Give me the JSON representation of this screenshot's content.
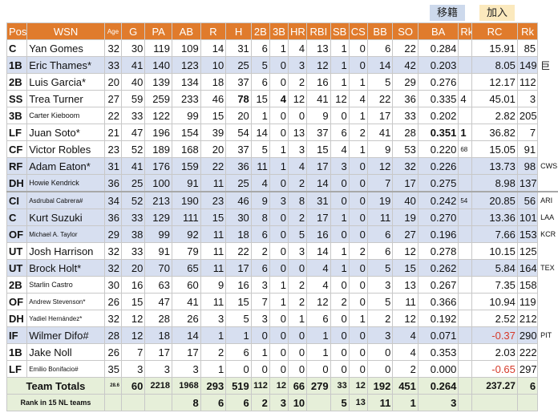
{
  "buttons": {
    "transfer": "移籍",
    "join": "加入"
  },
  "headers": [
    "Pos",
    "WSN",
    "Age",
    "G",
    "PA",
    "AB",
    "R",
    "H",
    "2B",
    "3B",
    "HR",
    "RBI",
    "SB",
    "CS",
    "BB",
    "SO",
    "BA",
    "Rk",
    "RC",
    "Rk"
  ],
  "players": [
    {
      "pos": "C",
      "name": "Yan Gomes",
      "age": "32",
      "g": "30",
      "pa": "119",
      "ab": "109",
      "r": "14",
      "h": "31",
      "d": "6",
      "t": "1",
      "hr": "4",
      "rbi": "13",
      "sb": "1",
      "cs": "0",
      "bb": "6",
      "so": "22",
      "ba": "0.284",
      "rk1": "",
      "rc": "15.91",
      "rk2": "85",
      "team": "",
      "row": "white"
    },
    {
      "pos": "1B",
      "name": "Eric Thames*",
      "age": "33",
      "g": "41",
      "pa": "140",
      "ab": "123",
      "r": "10",
      "h": "25",
      "d": "5",
      "t": "0",
      "hr": "3",
      "rbi": "12",
      "sb": "1",
      "cs": "0",
      "bb": "14",
      "so": "42",
      "ba": "0.203",
      "rk1": "",
      "rc": "8.05",
      "rk2": "149",
      "team": "巨",
      "row": "blue"
    },
    {
      "pos": "2B",
      "name": "Luis Garcia*",
      "age": "20",
      "g": "40",
      "pa": "139",
      "ab": "134",
      "r": "18",
      "h": "37",
      "d": "6",
      "t": "0",
      "hr": "2",
      "rbi": "16",
      "sb": "1",
      "cs": "1",
      "bb": "5",
      "so": "29",
      "ba": "0.276",
      "rk1": "",
      "rc": "12.17",
      "rk2": "112",
      "team": "",
      "row": "white"
    },
    {
      "pos": "SS",
      "name": "Trea Turner",
      "age": "27",
      "g": "59",
      "pa": "259",
      "ab": "233",
      "r": "46",
      "h": "78",
      "d": "15",
      "t": "4",
      "hr": "12",
      "rbi": "41",
      "sb": "12",
      "cs": "4",
      "bb": "22",
      "so": "36",
      "ba": "0.335",
      "rk1": "4",
      "rc": "45.01",
      "rk2": "3",
      "team": "",
      "row": "white"
    },
    {
      "pos": "3B",
      "name": "Carter Kieboom",
      "age": "22",
      "g": "33",
      "pa": "122",
      "ab": "99",
      "r": "15",
      "h": "20",
      "d": "1",
      "t": "0",
      "hr": "0",
      "rbi": "9",
      "sb": "0",
      "cs": "1",
      "bb": "17",
      "so": "33",
      "ba": "0.202",
      "rk1": "",
      "rc": "2.82",
      "rk2": "205",
      "team": "",
      "row": "white"
    },
    {
      "pos": "LF",
      "name": "Juan Soto*",
      "age": "21",
      "g": "47",
      "pa": "196",
      "ab": "154",
      "r": "39",
      "h": "54",
      "d": "14",
      "t": "0",
      "hr": "13",
      "rbi": "37",
      "sb": "6",
      "cs": "2",
      "bb": "41",
      "so": "28",
      "ba": "0.351",
      "rk1": "1",
      "rc": "36.82",
      "rk2": "7",
      "team": "",
      "row": "white"
    },
    {
      "pos": "CF",
      "name": "Victor Robles",
      "age": "23",
      "g": "52",
      "pa": "189",
      "ab": "168",
      "r": "20",
      "h": "37",
      "d": "5",
      "t": "1",
      "hr": "3",
      "rbi": "15",
      "sb": "4",
      "cs": "1",
      "bb": "9",
      "so": "53",
      "ba": "0.220",
      "rk1": "68",
      "rc": "15.05",
      "rk2": "91",
      "team": "",
      "row": "white"
    },
    {
      "pos": "RF",
      "name": "Adam Eaton*",
      "age": "31",
      "g": "41",
      "pa": "176",
      "ab": "159",
      "r": "22",
      "h": "36",
      "d": "11",
      "t": "1",
      "hr": "4",
      "rbi": "17",
      "sb": "3",
      "cs": "0",
      "bb": "12",
      "so": "32",
      "ba": "0.226",
      "rk1": "",
      "rc": "13.73",
      "rk2": "98",
      "team": "CWS",
      "row": "blue"
    },
    {
      "pos": "DH",
      "name": "Howie Kendrick",
      "age": "36",
      "g": "25",
      "pa": "100",
      "ab": "91",
      "r": "11",
      "h": "25",
      "d": "4",
      "t": "0",
      "hr": "2",
      "rbi": "14",
      "sb": "0",
      "cs": "0",
      "bb": "7",
      "so": "17",
      "ba": "0.275",
      "rk1": "",
      "rc": "8.98",
      "rk2": "137",
      "team": "",
      "row": "blue"
    },
    {
      "pos": "CI",
      "name": "Asdrubal Cabrera#",
      "age": "34",
      "g": "52",
      "pa": "213",
      "ab": "190",
      "r": "23",
      "h": "46",
      "d": "9",
      "t": "3",
      "hr": "8",
      "rbi": "31",
      "sb": "0",
      "cs": "0",
      "bb": "19",
      "so": "40",
      "ba": "0.242",
      "rk1": "54",
      "rc": "20.85",
      "rk2": "56",
      "team": "ARI",
      "row": "blue"
    },
    {
      "pos": "C",
      "name": "Kurt Suzuki",
      "age": "36",
      "g": "33",
      "pa": "129",
      "ab": "111",
      "r": "15",
      "h": "30",
      "d": "8",
      "t": "0",
      "hr": "2",
      "rbi": "17",
      "sb": "1",
      "cs": "0",
      "bb": "11",
      "so": "19",
      "ba": "0.270",
      "rk1": "",
      "rc": "13.36",
      "rk2": "101",
      "team": "LAA",
      "row": "blue"
    },
    {
      "pos": "OF",
      "name": "Michael A. Taylor",
      "age": "29",
      "g": "38",
      "pa": "99",
      "ab": "92",
      "r": "11",
      "h": "18",
      "d": "6",
      "t": "0",
      "hr": "5",
      "rbi": "16",
      "sb": "0",
      "cs": "0",
      "bb": "6",
      "so": "27",
      "ba": "0.196",
      "rk1": "",
      "rc": "7.66",
      "rk2": "153",
      "team": "KCR",
      "row": "blue"
    },
    {
      "pos": "UT",
      "name": "Josh Harrison",
      "age": "32",
      "g": "33",
      "pa": "91",
      "ab": "79",
      "r": "11",
      "h": "22",
      "d": "2",
      "t": "0",
      "hr": "3",
      "rbi": "14",
      "sb": "1",
      "cs": "2",
      "bb": "6",
      "so": "12",
      "ba": "0.278",
      "rk1": "",
      "rc": "10.15",
      "rk2": "125",
      "team": "",
      "row": "white"
    },
    {
      "pos": "UT",
      "name": "Brock Holt*",
      "age": "32",
      "g": "20",
      "pa": "70",
      "ab": "65",
      "r": "11",
      "h": "17",
      "d": "6",
      "t": "0",
      "hr": "0",
      "rbi": "4",
      "sb": "1",
      "cs": "0",
      "bb": "5",
      "so": "15",
      "ba": "0.262",
      "rk1": "",
      "rc": "5.84",
      "rk2": "164",
      "team": "TEX",
      "row": "blue"
    },
    {
      "pos": "2B",
      "name": "Starlin Castro",
      "age": "30",
      "g": "16",
      "pa": "63",
      "ab": "60",
      "r": "9",
      "h": "16",
      "d": "3",
      "t": "1",
      "hr": "2",
      "rbi": "4",
      "sb": "0",
      "cs": "0",
      "bb": "3",
      "so": "13",
      "ba": "0.267",
      "rk1": "",
      "rc": "7.35",
      "rk2": "158",
      "team": "",
      "row": "white"
    },
    {
      "pos": "OF",
      "name": "Andrew Stevenson*",
      "age": "26",
      "g": "15",
      "pa": "47",
      "ab": "41",
      "r": "11",
      "h": "15",
      "d": "7",
      "t": "1",
      "hr": "2",
      "rbi": "12",
      "sb": "2",
      "cs": "0",
      "bb": "5",
      "so": "11",
      "ba": "0.366",
      "rk1": "",
      "rc": "10.94",
      "rk2": "119",
      "team": "",
      "row": "white"
    },
    {
      "pos": "DH",
      "name": "Yadiel Hernández*",
      "age": "32",
      "g": "12",
      "pa": "28",
      "ab": "26",
      "r": "3",
      "h": "5",
      "d": "3",
      "t": "0",
      "hr": "1",
      "rbi": "6",
      "sb": "0",
      "cs": "1",
      "bb": "2",
      "so": "12",
      "ba": "0.192",
      "rk1": "",
      "rc": "2.52",
      "rk2": "212",
      "team": "",
      "row": "white"
    },
    {
      "pos": "IF",
      "name": "Wilmer Difo#",
      "age": "28",
      "g": "12",
      "pa": "18",
      "ab": "14",
      "r": "1",
      "h": "1",
      "d": "0",
      "t": "0",
      "hr": "0",
      "rbi": "1",
      "sb": "0",
      "cs": "0",
      "bb": "3",
      "so": "4",
      "ba": "0.071",
      "rk1": "",
      "rc": "-0.37",
      "rk2": "290",
      "team": "PIT",
      "row": "blue"
    },
    {
      "pos": "1B",
      "name": "Jake Noll",
      "age": "26",
      "g": "7",
      "pa": "17",
      "ab": "17",
      "r": "2",
      "h": "6",
      "d": "1",
      "t": "0",
      "hr": "0",
      "rbi": "1",
      "sb": "0",
      "cs": "0",
      "bb": "0",
      "so": "4",
      "ba": "0.353",
      "rk1": "",
      "rc": "2.03",
      "rk2": "222",
      "team": "",
      "row": "white"
    },
    {
      "pos": "LF",
      "name": "Emilio Bonifacio#",
      "age": "35",
      "g": "3",
      "pa": "3",
      "ab": "3",
      "r": "1",
      "h": "0",
      "d": "0",
      "t": "0",
      "hr": "0",
      "rbi": "0",
      "sb": "0",
      "cs": "0",
      "bb": "0",
      "so": "2",
      "ba": "0.000",
      "rk1": "",
      "rc": "-0.65",
      "rk2": "297",
      "team": "",
      "row": "white"
    }
  ],
  "totals": {
    "label": "Team Totals",
    "age": "28.6",
    "g": "60",
    "pa": "2218",
    "ab": "1968",
    "r": "293",
    "h": "519",
    "d": "112",
    "t": "12",
    "hr": "66",
    "rbi": "279",
    "sb": "33",
    "cs": "12",
    "bb": "192",
    "so": "451",
    "ba": "0.264",
    "rc": "237.27",
    "rk2": "6"
  },
  "rank": {
    "label": "Rank in 15 NL teams",
    "ab": "8",
    "r": "6",
    "h": "6",
    "d": "2",
    "t": "3",
    "hr": "10",
    "sb": "5",
    "cs": "13",
    "bb": "11",
    "so": "1",
    "ba": "3"
  }
}
